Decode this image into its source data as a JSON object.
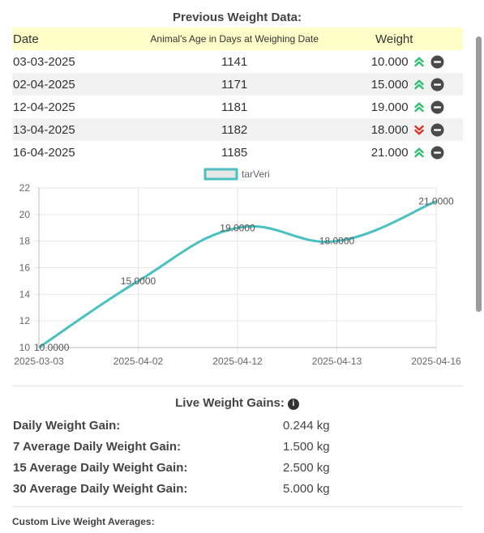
{
  "previous": {
    "title": "Previous Weight Data:",
    "headers": {
      "date": "Date",
      "age": "Animal's Age in Days at Weighing Date",
      "weight": "Weight"
    },
    "rows": [
      {
        "date": "03-03-2025",
        "age": "1141",
        "weight": "10.000",
        "trend": "up"
      },
      {
        "date": "02-04-2025",
        "age": "1171",
        "weight": "15.000",
        "trend": "up"
      },
      {
        "date": "12-04-2025",
        "age": "1181",
        "weight": "19.000",
        "trend": "up"
      },
      {
        "date": "13-04-2025",
        "age": "1182",
        "weight": "18.000",
        "trend": "down"
      },
      {
        "date": "16-04-2025",
        "age": "1185",
        "weight": "21.000",
        "trend": "up"
      }
    ]
  },
  "colors": {
    "up": "#2fbf71",
    "down": "#d9342b",
    "line": "#4bc0c0",
    "legend_fill": "#e6e6e6",
    "header_bg": "#fffec8"
  },
  "chart_data": {
    "type": "line",
    "categories": [
      "2025-03-03",
      "2025-04-02",
      "2025-04-12",
      "2025-04-13",
      "2025-04-16"
    ],
    "series": [
      {
        "name": "tarVeri",
        "values": [
          10,
          15,
          19,
          18,
          21
        ]
      }
    ],
    "data_labels": [
      "10.0000",
      "15.0000",
      "19.0000",
      "18.0000",
      "21.0000"
    ],
    "yticks": [
      10,
      12,
      14,
      16,
      18,
      20,
      22
    ],
    "ylim": [
      10,
      22
    ],
    "grid": true,
    "legend": "top-center"
  },
  "gains": {
    "title": "Live Weight Gains:",
    "items": [
      {
        "label": "Daily Weight Gain:",
        "value": "0.244 kg"
      },
      {
        "label": "7 Average Daily Weight Gain:",
        "value": "1.500 kg"
      },
      {
        "label": "15 Average Daily Weight Gain:",
        "value": "2.500 kg"
      },
      {
        "label": "30 Average Daily Weight Gain:",
        "value": "5.000 kg"
      }
    ]
  },
  "custom": {
    "title": "Custom Live Weight Averages:"
  },
  "icons": {
    "up": "chevron-double-up-icon",
    "down": "chevron-double-down-icon",
    "remove": "minus-circle-icon",
    "info": "info-icon"
  }
}
